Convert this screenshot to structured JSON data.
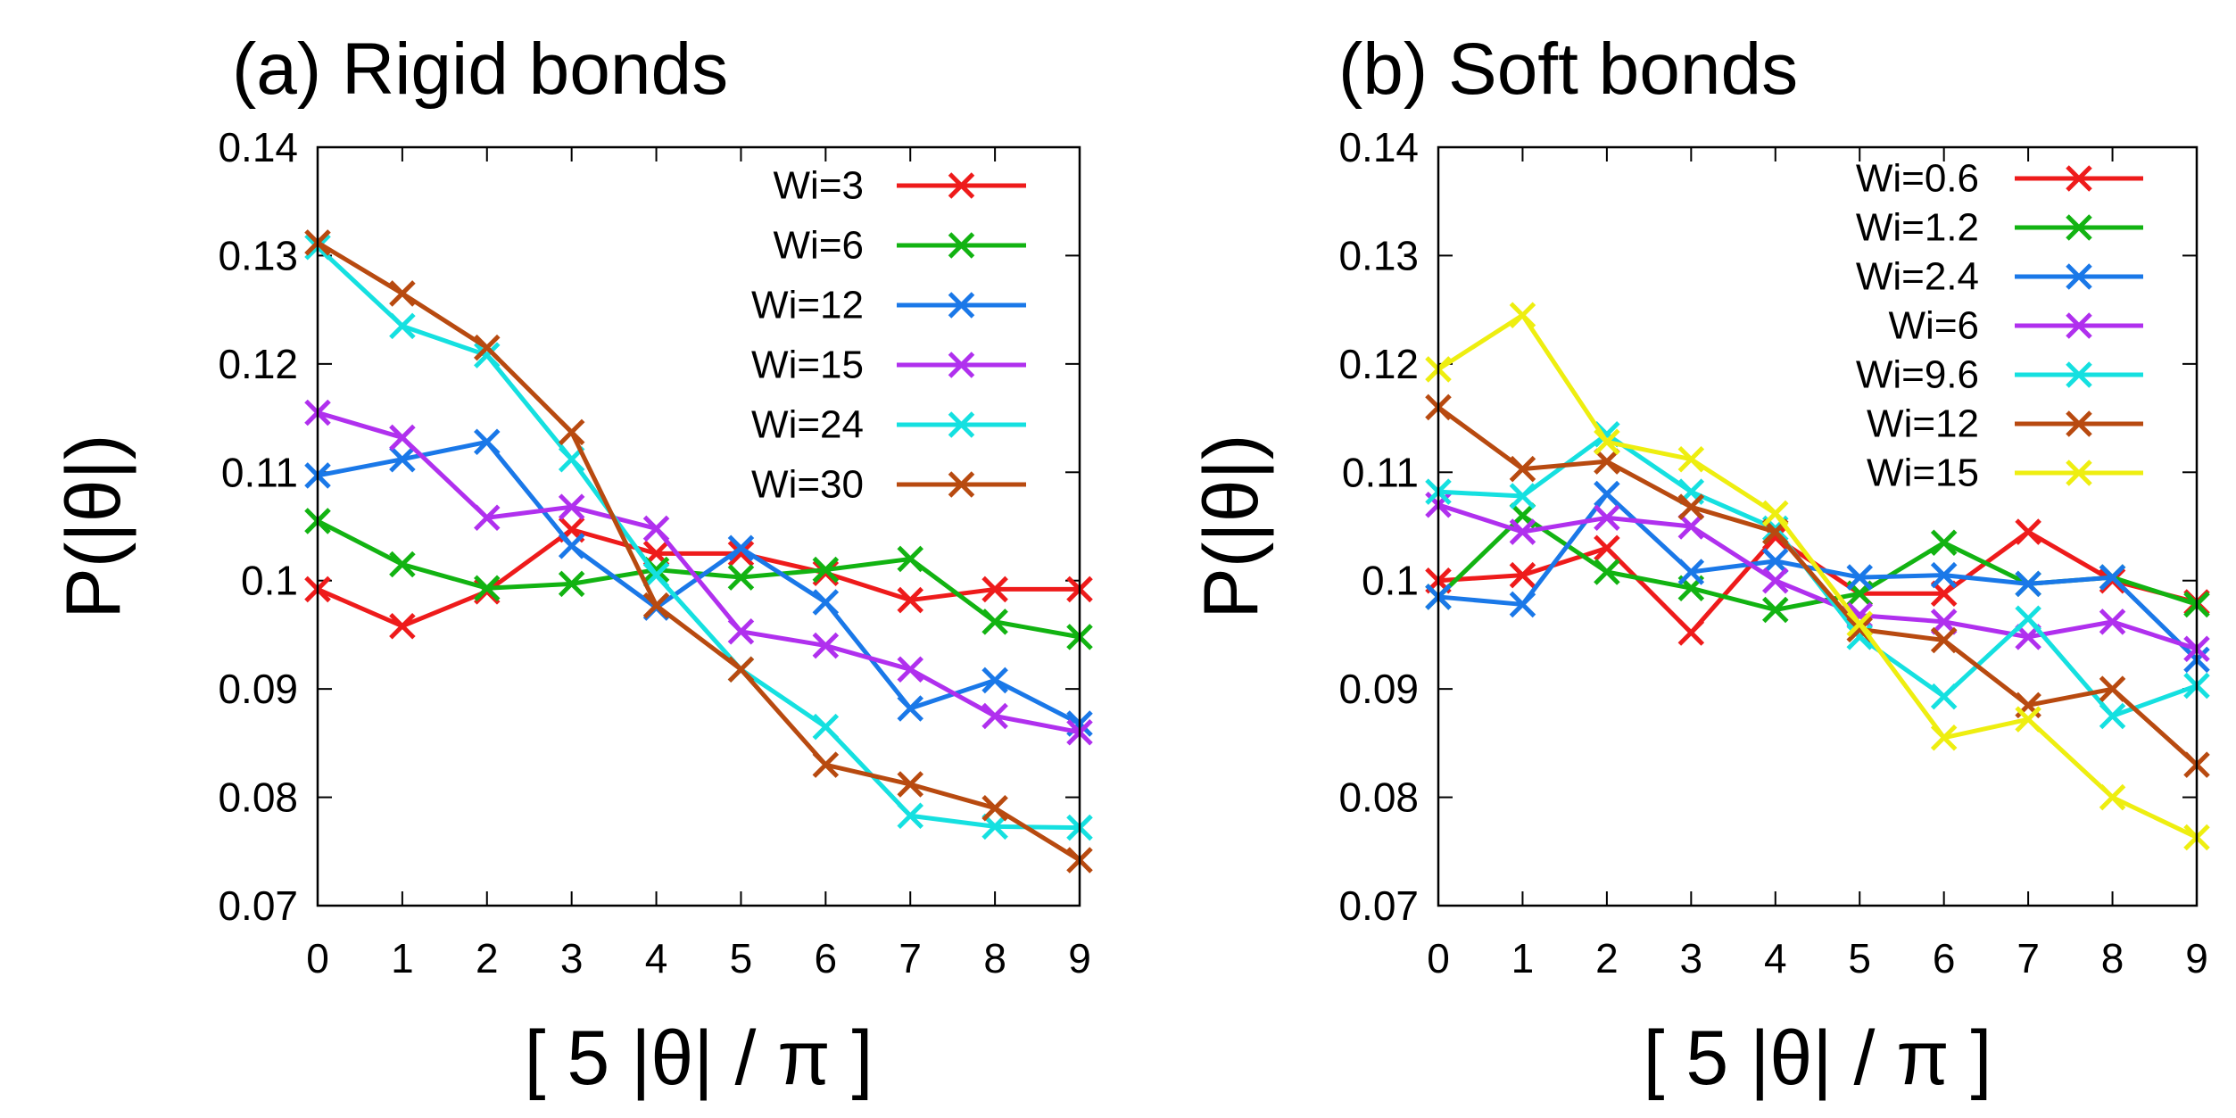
{
  "chart_data": [
    {
      "type": "line",
      "title": "(a) Rigid bonds",
      "xlabel": "[ 5 |θ| / π ]",
      "ylabel": "P(|θ|)",
      "x": [
        0,
        1,
        2,
        3,
        4,
        5,
        6,
        7,
        8,
        9
      ],
      "xlim": [
        0,
        9
      ],
      "ylim": [
        0.07,
        0.14
      ],
      "yticks": [
        "0.07",
        "0.08",
        "0.09",
        "0.1",
        "0.11",
        "0.12",
        "0.13",
        "0.14"
      ],
      "xticks": [
        "0",
        "1",
        "2",
        "3",
        "4",
        "5",
        "6",
        "7",
        "8",
        "9"
      ],
      "legend_position": "top-right",
      "series": [
        {
          "name": "Wi=3",
          "color": "#ee1b1b",
          "values": [
            0.0992,
            0.0958,
            0.099,
            0.1047,
            0.1025,
            0.1025,
            0.1007,
            0.0982,
            0.0992,
            0.0992
          ]
        },
        {
          "name": "Wi=6",
          "color": "#12b312",
          "values": [
            0.1055,
            0.1015,
            0.0993,
            0.0997,
            0.101,
            0.1003,
            0.101,
            0.102,
            0.0962,
            0.0948
          ]
        },
        {
          "name": "Wi=12",
          "color": "#1a78e8",
          "values": [
            0.1097,
            0.1112,
            0.1128,
            0.1032,
            0.0975,
            0.103,
            0.098,
            0.0882,
            0.0908,
            0.0868
          ]
        },
        {
          "name": "Wi=15",
          "color": "#b030ee",
          "values": [
            0.1155,
            0.1132,
            0.1058,
            0.1068,
            0.1048,
            0.0953,
            0.094,
            0.0918,
            0.0875,
            0.086
          ]
        },
        {
          "name": "Wi=24",
          "color": "#15e0e0",
          "values": [
            0.1308,
            0.1235,
            0.1208,
            0.1112,
            0.1005,
            0.0918,
            0.0865,
            0.0783,
            0.0773,
            0.0772
          ]
        },
        {
          "name": "Wi=30",
          "color": "#b84a10",
          "values": [
            0.1312,
            0.1265,
            0.1215,
            0.1137,
            0.0977,
            0.0918,
            0.083,
            0.0812,
            0.079,
            0.0742
          ]
        }
      ]
    },
    {
      "type": "line",
      "title": "(b) Soft bonds",
      "xlabel": "[ 5 |θ| / π ]",
      "ylabel": "P(|θ|)",
      "x": [
        0,
        1,
        2,
        3,
        4,
        5,
        6,
        7,
        8,
        9
      ],
      "xlim": [
        0,
        9
      ],
      "ylim": [
        0.07,
        0.14
      ],
      "yticks": [
        "0.07",
        "0.08",
        "0.09",
        "0.1",
        "0.11",
        "0.12",
        "0.13",
        "0.14"
      ],
      "xticks": [
        "0",
        "1",
        "2",
        "3",
        "4",
        "5",
        "6",
        "7",
        "8",
        "9"
      ],
      "legend_position": "top-right",
      "series": [
        {
          "name": "Wi=0.6",
          "color": "#ee1b1b",
          "values": [
            0.1,
            0.1005,
            0.103,
            0.0952,
            0.104,
            0.0988,
            0.0988,
            0.1045,
            0.1,
            0.098
          ]
        },
        {
          "name": "Wi=1.2",
          "color": "#12b312",
          "values": [
            0.0985,
            0.106,
            0.1008,
            0.0993,
            0.0973,
            0.0988,
            0.1035,
            0.0997,
            0.1003,
            0.0978
          ]
        },
        {
          "name": "Wi=2.4",
          "color": "#1a78e8",
          "values": [
            0.0985,
            0.0978,
            0.108,
            0.1008,
            0.1018,
            0.1003,
            0.1005,
            0.0997,
            0.1003,
            0.0927
          ]
        },
        {
          "name": "Wi=6",
          "color": "#b030ee",
          "values": [
            0.107,
            0.1045,
            0.1058,
            0.105,
            0.1,
            0.0968,
            0.0962,
            0.0948,
            0.0962,
            0.0937
          ]
        },
        {
          "name": "Wi=9.6",
          "color": "#15e0e0",
          "values": [
            0.1082,
            0.1078,
            0.1135,
            0.1082,
            0.1048,
            0.0948,
            0.0893,
            0.0965,
            0.0875,
            0.0903
          ]
        },
        {
          "name": "Wi=12",
          "color": "#b84a10",
          "values": [
            0.116,
            0.1103,
            0.111,
            0.1068,
            0.1045,
            0.0955,
            0.0945,
            0.0885,
            0.09,
            0.083
          ]
        },
        {
          "name": "Wi=15",
          "color": "#eeee10",
          "values": [
            0.1195,
            0.1245,
            0.1128,
            0.1112,
            0.1062,
            0.096,
            0.0855,
            0.0872,
            0.08,
            0.0763
          ]
        }
      ]
    }
  ]
}
